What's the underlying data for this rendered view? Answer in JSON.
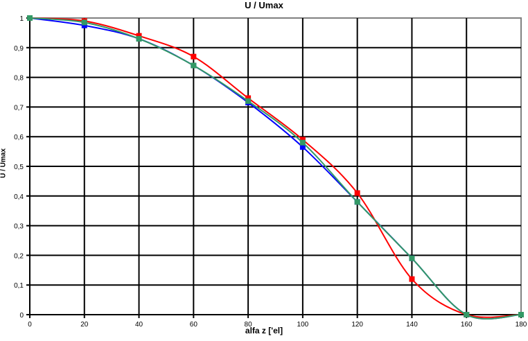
{
  "chart_data": {
    "type": "line",
    "title": "U / Umax",
    "xlabel": "alfa z ['el]",
    "ylabel": "U / Umax",
    "x": [
      0,
      20,
      40,
      60,
      80,
      100,
      120,
      140,
      160,
      180
    ],
    "xlim": [
      0,
      180
    ],
    "ylim": [
      0,
      1
    ],
    "xticks": [
      "0",
      "20",
      "40",
      "60",
      "80",
      "100",
      "120",
      "140",
      "160",
      "180"
    ],
    "yticks": [
      "0",
      "0,1",
      "0,2",
      "0,3",
      "0,4",
      "0,5",
      "0,6",
      "0,7",
      "0,8",
      "0,9",
      "1"
    ],
    "grid": true,
    "legend": null,
    "series": [
      {
        "name": "blue",
        "color": "#0000ff",
        "values": [
          1,
          0.975,
          0.93,
          0.84,
          0.715,
          0.565,
          0.38,
          0.19,
          0,
          0
        ]
      },
      {
        "name": "red",
        "color": "#ff0000",
        "values": [
          1,
          0.99,
          0.94,
          0.87,
          0.73,
          0.59,
          0.41,
          0.12,
          0,
          0
        ]
      },
      {
        "name": "green",
        "color": "#339966",
        "values": [
          1,
          0.985,
          0.93,
          0.84,
          0.72,
          0.58,
          0.38,
          0.19,
          0,
          0
        ]
      }
    ]
  }
}
